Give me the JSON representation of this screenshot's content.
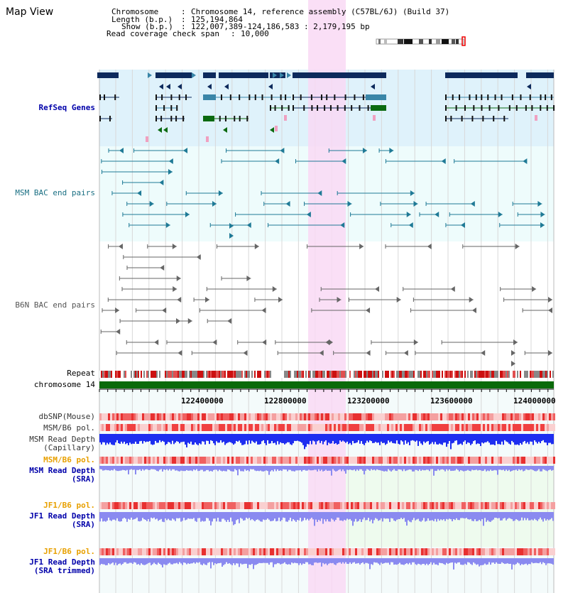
{
  "view_title": "Map View",
  "info": {
    "chromosome_key": "Chromosome",
    "chromosome_val": "Chromosome 14, reference assembly (C57BL/6J) (Build 37)",
    "length_key": "Length (b.p.)",
    "length_val": "125,194,864",
    "show_key": "Show (b.p.)",
    "show_val": "122,007,389-124,186,583 : 2,179,195 bp",
    "span_key": "Read coverage check span",
    "span_val": "10,000"
  },
  "tracks": {
    "refseq": "RefSeq Genes",
    "msm_bac": "MSM BAC end pairs",
    "b6n_bac": "B6N BAC end pairs",
    "repeat": "Repeat",
    "chromosome": "chromosome 14",
    "dbsnp": "dbSNP(Mouse)",
    "msm_b6_pol": "MSM/B6 pol.",
    "msm_depth_cap": "MSM Read Depth\n(Capillary)",
    "msm_b6_pol2": "MSM/B6 pol.",
    "msm_depth_sra": "MSM Read Depth\n(SRA)",
    "jf1_b6_pol": "JF1/B6 pol.",
    "jf1_depth_sra": "JF1 Read Depth\n(SRA)",
    "jf1_b6_pol2": "JF1/B6 pol.",
    "jf1_depth_trim": "JF1 Read Depth\n(SRA trimmed)"
  },
  "ticks": [
    "122400000",
    "122800000",
    "123200000",
    "123600000",
    "124000000"
  ],
  "colors": {
    "refseq_bg": "#dff2fb",
    "msm_bg": "#eefcfc",
    "b6n_bg": "#ffffff",
    "highlight": "#f9d9f5",
    "gene_dark": "#0d2a5c",
    "gene_mid": "#3a86a8",
    "gene_green": "#0b6a10",
    "msm_color": "#1f7a96",
    "b6n_color": "#666666",
    "chrom_green": "#0a6a0a",
    "depth_blue": "#1e2ef0",
    "depth_light": "#8a8af0"
  }
}
